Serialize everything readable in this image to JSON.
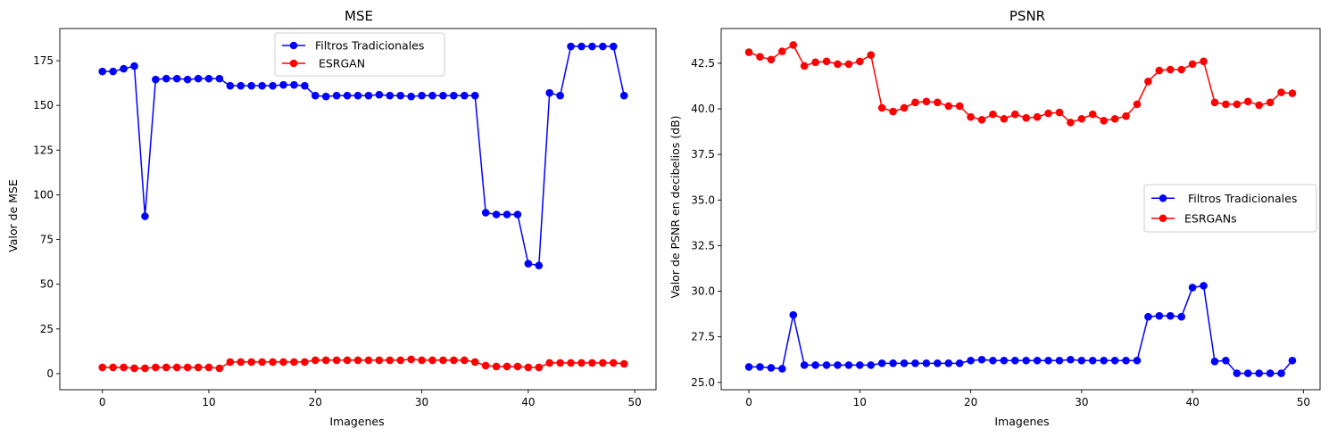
{
  "chart_data": [
    {
      "type": "line",
      "title": "MSE",
      "xlabel": "Imagenes",
      "ylabel": "Valor de MSE",
      "xlim": [
        -4,
        52
      ],
      "ylim": [
        -9,
        193
      ],
      "xticks": [
        0,
        10,
        20,
        30,
        40,
        50
      ],
      "yticks": [
        0,
        25,
        50,
        75,
        100,
        125,
        150,
        175
      ],
      "legend": "top-center",
      "x": [
        0,
        1,
        2,
        3,
        4,
        5,
        6,
        7,
        8,
        9,
        10,
        11,
        12,
        13,
        14,
        15,
        16,
        17,
        18,
        19,
        20,
        21,
        22,
        23,
        24,
        25,
        26,
        27,
        28,
        29,
        30,
        31,
        32,
        33,
        34,
        35,
        36,
        37,
        38,
        39,
        40,
        41,
        42,
        43,
        44,
        45,
        46,
        47,
        48,
        49
      ],
      "series": [
        {
          "name": "Filtros Tradicionales",
          "color": "#0000ff",
          "values": [
            169,
            169,
            170.5,
            172,
            88,
            164.5,
            165,
            165,
            164.5,
            165,
            165,
            165,
            161,
            161,
            161,
            161,
            161,
            161.5,
            161.5,
            161,
            155.5,
            155,
            155.5,
            155.5,
            155.5,
            155.5,
            156,
            155.5,
            155.5,
            155,
            155.5,
            155.5,
            155.5,
            155.5,
            155.5,
            155.5,
            90,
            89,
            89,
            89,
            61.5,
            60.5,
            157,
            155.5,
            183,
            183,
            183,
            183,
            183,
            155.5
          ]
        },
        {
          "name": " ESRGAN",
          "color": "#ff0000",
          "values": [
            3.5,
            3.5,
            3.5,
            3,
            3,
            3.5,
            3.5,
            3.5,
            3.5,
            3.5,
            3.5,
            3,
            6.5,
            6.5,
            6.5,
            6.5,
            6.5,
            6.5,
            6.5,
            6.5,
            7.5,
            7.5,
            7.5,
            7.5,
            7.5,
            7.5,
            7.5,
            7.5,
            7.5,
            8,
            7.5,
            7.5,
            7.5,
            7.5,
            7.5,
            6.5,
            4.5,
            4,
            4,
            4,
            3.5,
            3.5,
            6,
            6,
            6,
            6,
            6,
            6,
            6,
            5.5
          ]
        }
      ]
    },
    {
      "type": "line",
      "title": "PSNR",
      "xlabel": "Imagenes",
      "ylabel": "Valor de PSNR en decibelios (dB)",
      "xlim": [
        -2.5,
        51.5
      ],
      "ylim": [
        24.6,
        44.4
      ],
      "xticks": [
        0,
        10,
        20,
        30,
        40,
        50
      ],
      "yticks": [
        25.0,
        27.5,
        30.0,
        32.5,
        35.0,
        37.5,
        40.0,
        42.5
      ],
      "legend": "center-right",
      "x": [
        0,
        1,
        2,
        3,
        4,
        5,
        6,
        7,
        8,
        9,
        10,
        11,
        12,
        13,
        14,
        15,
        16,
        17,
        18,
        19,
        20,
        21,
        22,
        23,
        24,
        25,
        26,
        27,
        28,
        29,
        30,
        31,
        32,
        33,
        34,
        35,
        36,
        37,
        38,
        39,
        40,
        41,
        42,
        43,
        44,
        45,
        46,
        47,
        48,
        49
      ],
      "series": [
        {
          "name": " Filtros Tradicionales",
          "color": "#0000ff",
          "values": [
            25.85,
            25.85,
            25.8,
            25.75,
            28.7,
            25.95,
            25.95,
            25.95,
            25.95,
            25.95,
            25.95,
            25.95,
            26.05,
            26.05,
            26.05,
            26.05,
            26.05,
            26.05,
            26.05,
            26.05,
            26.2,
            26.25,
            26.2,
            26.2,
            26.2,
            26.2,
            26.2,
            26.2,
            26.2,
            26.25,
            26.2,
            26.2,
            26.2,
            26.2,
            26.2,
            26.2,
            28.6,
            28.65,
            28.65,
            28.6,
            30.2,
            30.3,
            26.15,
            26.2,
            25.5,
            25.5,
            25.5,
            25.5,
            25.5,
            26.2
          ]
        },
        {
          "name": "ESRGANs",
          "color": "#ff0000",
          "values": [
            43.1,
            42.85,
            42.7,
            43.15,
            43.5,
            42.35,
            42.55,
            42.6,
            42.45,
            42.45,
            42.6,
            42.95,
            40.05,
            39.85,
            40.05,
            40.35,
            40.4,
            40.35,
            40.15,
            40.15,
            39.55,
            39.4,
            39.7,
            39.45,
            39.7,
            39.5,
            39.55,
            39.75,
            39.8,
            39.25,
            39.45,
            39.7,
            39.35,
            39.45,
            39.6,
            40.25,
            41.5,
            42.1,
            42.15,
            42.15,
            42.45,
            42.6,
            40.35,
            40.25,
            40.25,
            40.4,
            40.2,
            40.35,
            40.9,
            40.85
          ]
        }
      ]
    }
  ]
}
